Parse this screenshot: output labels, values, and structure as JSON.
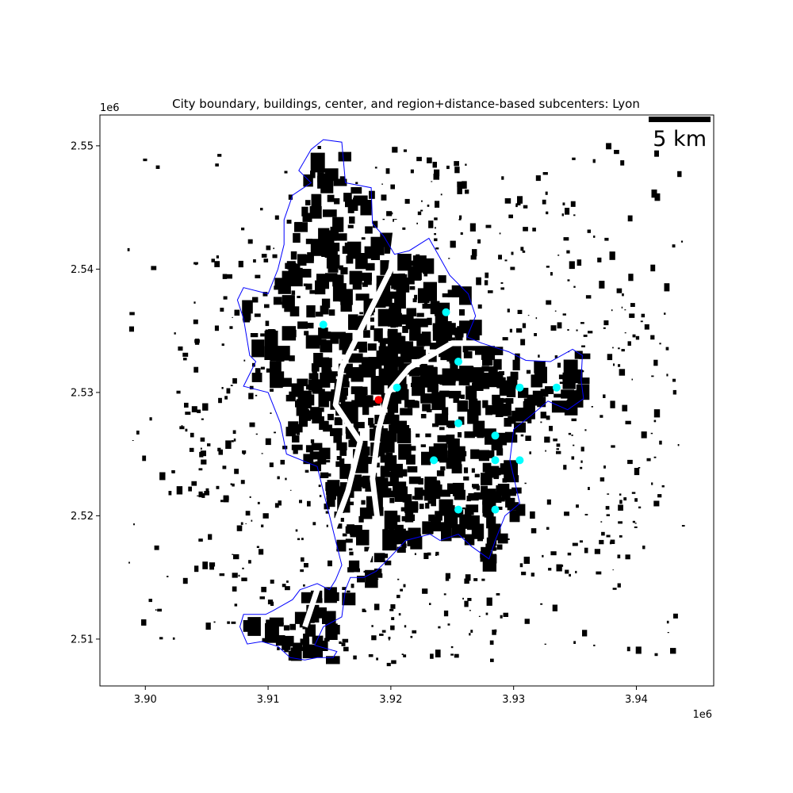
{
  "title": "City boundary, buildings, center, and region+distance-based subcenters: Lyon",
  "x_offset_label": "1e6",
  "y_offset_label": "1e6",
  "scale_bar": {
    "label": "5 km",
    "length_km": 5
  },
  "colors": {
    "boundary": "#0000ff",
    "buildings": "#000000",
    "center": "#ff0000",
    "subcenters": "#00ffff"
  },
  "chart_data": {
    "type": "map",
    "xlim": [
      3.8963,
      3.9463
    ],
    "ylim": [
      2.5062,
      2.5525
    ],
    "x_ticks": [
      {
        "value": 3.9,
        "label": "3.90"
      },
      {
        "value": 3.91,
        "label": "3.91"
      },
      {
        "value": 3.92,
        "label": "3.92"
      },
      {
        "value": 3.93,
        "label": "3.93"
      },
      {
        "value": 3.94,
        "label": "3.94"
      }
    ],
    "y_ticks": [
      {
        "value": 2.51,
        "label": "2.51"
      },
      {
        "value": 2.52,
        "label": "2.52"
      },
      {
        "value": 2.53,
        "label": "2.53"
      },
      {
        "value": 2.54,
        "label": "2.54"
      },
      {
        "value": 2.55,
        "label": "2.55"
      }
    ],
    "center": {
      "x": 3.919,
      "y": 2.5294
    },
    "subcenters": [
      {
        "x": 3.9145,
        "y": 2.5355
      },
      {
        "x": 3.9245,
        "y": 2.5365
      },
      {
        "x": 3.9255,
        "y": 2.5325
      },
      {
        "x": 3.9205,
        "y": 2.5304
      },
      {
        "x": 3.9305,
        "y": 2.5304
      },
      {
        "x": 3.9335,
        "y": 2.5304
      },
      {
        "x": 3.9255,
        "y": 2.5275
      },
      {
        "x": 3.9285,
        "y": 2.5265
      },
      {
        "x": 3.9235,
        "y": 2.5245
      },
      {
        "x": 3.9285,
        "y": 2.5245
      },
      {
        "x": 3.9305,
        "y": 2.5245
      },
      {
        "x": 3.9255,
        "y": 2.5205
      },
      {
        "x": 3.9285,
        "y": 2.5205
      }
    ],
    "boundary": [
      [
        3.9145,
        2.5505
      ],
      [
        3.916,
        2.5503
      ],
      [
        3.9163,
        2.547
      ],
      [
        3.9184,
        2.5466
      ],
      [
        3.9185,
        2.5437
      ],
      [
        3.9194,
        2.5427
      ],
      [
        3.9203,
        2.5412
      ],
      [
        3.9215,
        2.5415
      ],
      [
        3.9231,
        2.5425
      ],
      [
        3.9239,
        2.5411
      ],
      [
        3.9248,
        2.5395
      ],
      [
        3.9263,
        2.538
      ],
      [
        3.9269,
        2.5362
      ],
      [
        3.9262,
        2.5345
      ],
      [
        3.9274,
        2.534
      ],
      [
        3.9296,
        2.5333
      ],
      [
        3.931,
        2.5326
      ],
      [
        3.933,
        2.5325
      ],
      [
        3.9348,
        2.5335
      ],
      [
        3.9356,
        2.533
      ],
      [
        3.9355,
        2.531
      ],
      [
        3.9357,
        2.5295
      ],
      [
        3.9344,
        2.5286
      ],
      [
        3.9328,
        2.5293
      ],
      [
        3.9315,
        2.5282
      ],
      [
        3.93,
        2.527
      ],
      [
        3.9297,
        2.5245
      ],
      [
        3.9305,
        2.521
      ],
      [
        3.9293,
        2.52
      ],
      [
        3.9285,
        2.518
      ],
      [
        3.928,
        2.5165
      ],
      [
        3.9266,
        2.5175
      ],
      [
        3.9255,
        2.5185
      ],
      [
        3.924,
        2.518
      ],
      [
        3.9232,
        2.5185
      ],
      [
        3.9212,
        2.518
      ],
      [
        3.92,
        2.5167
      ],
      [
        3.9188,
        2.5155
      ],
      [
        3.9178,
        2.515
      ],
      [
        3.9167,
        2.515
      ],
      [
        3.9163,
        2.514
      ],
      [
        3.916,
        2.5118
      ],
      [
        3.9145,
        2.511
      ],
      [
        3.9138,
        2.5095
      ],
      [
        3.9156,
        2.509
      ],
      [
        3.9153,
        2.5085
      ],
      [
        3.914,
        2.5085
      ],
      [
        3.913,
        2.5083
      ],
      [
        3.9118,
        2.5085
      ],
      [
        3.9108,
        2.5094
      ],
      [
        3.9095,
        2.5098
      ],
      [
        3.9083,
        2.5096
      ],
      [
        3.9077,
        2.511
      ],
      [
        3.908,
        2.512
      ],
      [
        3.9098,
        2.512
      ],
      [
        3.9104,
        2.5123
      ],
      [
        3.912,
        2.5132
      ],
      [
        3.9126,
        2.514
      ],
      [
        3.914,
        2.5145
      ],
      [
        3.915,
        2.514
      ],
      [
        3.9155,
        2.5148
      ],
      [
        3.916,
        2.516
      ],
      [
        3.9155,
        2.518
      ],
      [
        3.915,
        2.52
      ],
      [
        3.9145,
        2.522
      ],
      [
        3.914,
        2.524
      ],
      [
        3.9115,
        2.525
      ],
      [
        3.911,
        2.5275
      ],
      [
        3.91,
        2.53
      ],
      [
        3.908,
        2.5305
      ],
      [
        3.909,
        2.5325
      ],
      [
        3.9085,
        2.533
      ],
      [
        3.908,
        2.536
      ],
      [
        3.9075,
        2.5375
      ],
      [
        3.908,
        2.5385
      ],
      [
        3.91,
        2.538
      ],
      [
        3.9108,
        2.54
      ],
      [
        3.9113,
        2.542
      ],
      [
        3.9113,
        2.544
      ],
      [
        3.912,
        2.546
      ],
      [
        3.9135,
        2.547
      ],
      [
        3.9125,
        2.548
      ],
      [
        3.9135,
        2.5497
      ],
      [
        3.9145,
        2.5505
      ]
    ],
    "south_lobe": [
      [
        3.915,
        2.5112
      ],
      [
        3.9165,
        2.512
      ],
      [
        3.9168,
        2.5145
      ],
      [
        3.9175,
        2.514
      ],
      [
        3.916,
        2.5118
      ],
      [
        3.915,
        2.5112
      ]
    ]
  }
}
